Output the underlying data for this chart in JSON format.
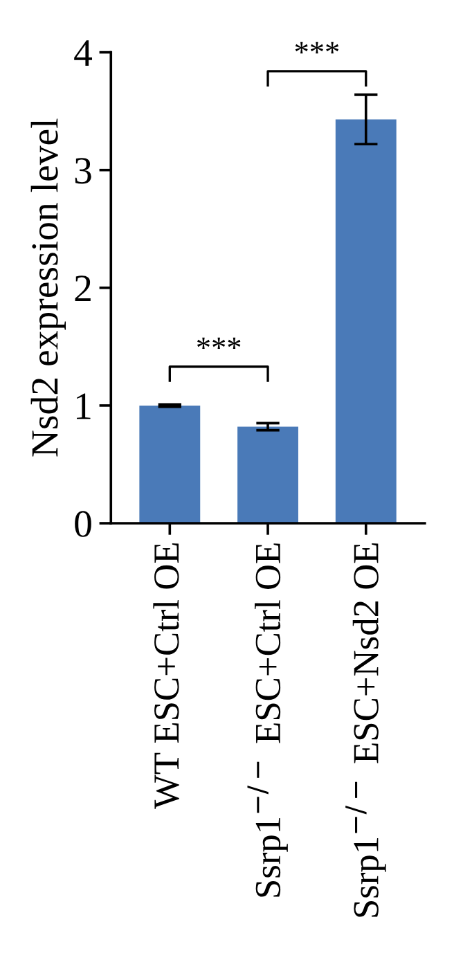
{
  "chart_data": {
    "type": "bar",
    "ylabel": "Nsd2 expression level",
    "categories": [
      "WT ESC+Ctrl OE",
      "Ssrp1$^{−/−}$ ESC+Ctrl OE",
      "Ssrp1$^{−/−}$ ESC+Nsd2 OE"
    ],
    "values": [
      1.0,
      0.82,
      3.43
    ],
    "errors": [
      0.01,
      0.03,
      0.21
    ],
    "color": "#4a7ab8",
    "ylim": [
      0,
      4
    ],
    "yticks": [
      0,
      1,
      2,
      3,
      4
    ],
    "annotations": [
      "***",
      "***"
    ],
    "grid": false
  }
}
